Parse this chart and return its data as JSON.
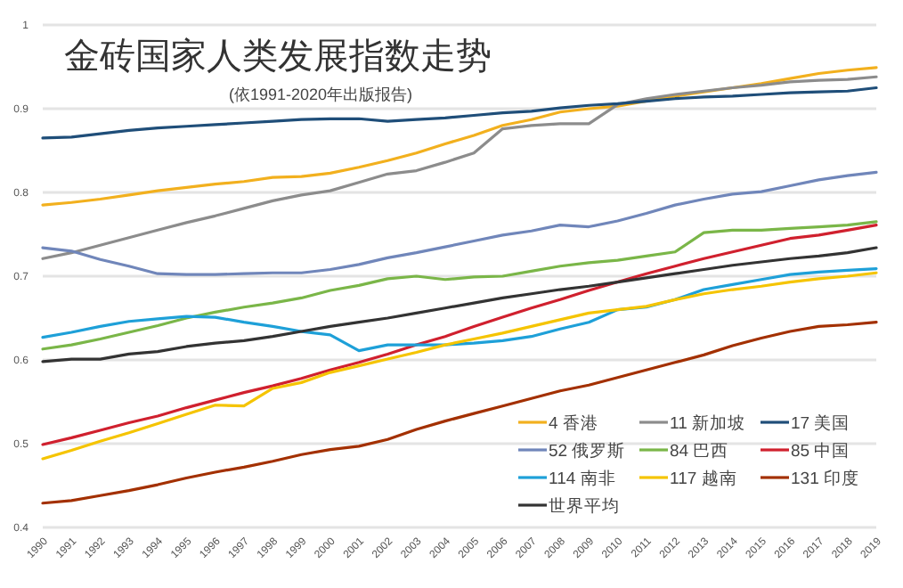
{
  "chart_data": {
    "type": "line",
    "title": "金砖国家人类发展指数走势",
    "subtitle": "(依1991-2020年出版报告)",
    "x": [
      1990,
      1991,
      1992,
      1993,
      1994,
      1995,
      1996,
      1997,
      1998,
      1999,
      2000,
      2001,
      2002,
      2003,
      2004,
      2005,
      2006,
      2007,
      2008,
      2009,
      2010,
      2011,
      2012,
      2013,
      2014,
      2015,
      2016,
      2017,
      2018,
      2019
    ],
    "xlim": [
      1990,
      2019
    ],
    "xticks": [
      1990,
      1991,
      1992,
      1993,
      1994,
      1995,
      1996,
      1997,
      1998,
      1999,
      2000,
      2001,
      2002,
      2003,
      2004,
      2005,
      2006,
      2007,
      2008,
      2009,
      2010,
      2011,
      2012,
      2013,
      2014,
      2015,
      2016,
      2017,
      2018,
      2019
    ],
    "ylim": [
      0.4,
      1
    ],
    "yticks": [
      0.4,
      0.5,
      0.6,
      0.7,
      0.8,
      0.9,
      1
    ],
    "grid": "y",
    "legend": "bottom right",
    "line_style": "solid",
    "marker": "none",
    "series": [
      {
        "name": "4 香港",
        "color": "#f2b01e",
        "values": [
          0.785,
          0.788,
          0.792,
          0.797,
          0.802,
          0.806,
          0.81,
          0.813,
          0.818,
          0.819,
          0.823,
          0.83,
          0.838,
          0.847,
          0.858,
          0.868,
          0.88,
          0.887,
          0.896,
          0.9,
          0.903,
          0.909,
          0.915,
          0.92,
          0.925,
          0.93,
          0.936,
          0.942,
          0.946,
          0.949
        ]
      },
      {
        "name": "11 新加坡",
        "color": "#8c8c8c",
        "values": [
          0.721,
          0.728,
          0.737,
          0.746,
          0.755,
          0.764,
          0.772,
          0.781,
          0.79,
          0.797,
          0.802,
          0.812,
          0.822,
          0.826,
          0.836,
          0.847,
          0.876,
          0.88,
          0.882,
          0.882,
          0.905,
          0.912,
          0.917,
          0.921,
          0.925,
          0.928,
          0.932,
          0.934,
          0.935,
          0.938
        ]
      },
      {
        "name": "17 美国",
        "color": "#1f4e79",
        "values": [
          0.865,
          0.866,
          0.87,
          0.874,
          0.877,
          0.879,
          0.881,
          0.883,
          0.885,
          0.887,
          0.888,
          0.888,
          0.885,
          0.887,
          0.889,
          0.892,
          0.895,
          0.897,
          0.901,
          0.904,
          0.906,
          0.909,
          0.912,
          0.914,
          0.915,
          0.917,
          0.919,
          0.92,
          0.921,
          0.925
        ]
      },
      {
        "name": "52 俄罗斯",
        "color": "#7086ba",
        "values": [
          0.734,
          0.73,
          0.72,
          0.712,
          0.703,
          0.702,
          0.702,
          0.703,
          0.704,
          0.704,
          0.708,
          0.714,
          0.722,
          0.728,
          0.735,
          0.742,
          0.749,
          0.754,
          0.761,
          0.759,
          0.766,
          0.775,
          0.785,
          0.792,
          0.798,
          0.801,
          0.808,
          0.815,
          0.82,
          0.824
        ]
      },
      {
        "name": "84 巴西",
        "color": "#7ab648",
        "values": [
          0.613,
          0.618,
          0.625,
          0.633,
          0.641,
          0.65,
          0.657,
          0.663,
          0.668,
          0.674,
          0.683,
          0.689,
          0.697,
          0.7,
          0.696,
          0.699,
          0.7,
          0.706,
          0.712,
          0.716,
          0.719,
          0.724,
          0.729,
          0.752,
          0.755,
          0.755,
          0.757,
          0.759,
          0.761,
          0.765
        ]
      },
      {
        "name": "85 中国",
        "color": "#d0202e",
        "values": [
          0.499,
          0.507,
          0.516,
          0.525,
          0.533,
          0.543,
          0.552,
          0.561,
          0.569,
          0.578,
          0.588,
          0.597,
          0.607,
          0.618,
          0.628,
          0.64,
          0.651,
          0.662,
          0.672,
          0.683,
          0.693,
          0.703,
          0.712,
          0.721,
          0.729,
          0.737,
          0.745,
          0.749,
          0.755,
          0.761
        ]
      },
      {
        "name": "114 南非",
        "color": "#1ea0d8",
        "values": [
          0.627,
          0.633,
          0.64,
          0.646,
          0.649,
          0.652,
          0.651,
          0.645,
          0.64,
          0.634,
          0.63,
          0.611,
          0.618,
          0.618,
          0.618,
          0.62,
          0.623,
          0.628,
          0.637,
          0.645,
          0.66,
          0.663,
          0.672,
          0.684,
          0.69,
          0.696,
          0.702,
          0.705,
          0.707,
          0.709
        ]
      },
      {
        "name": "117 越南",
        "color": "#f5c400",
        "values": [
          0.482,
          0.492,
          0.503,
          0.513,
          0.524,
          0.535,
          0.546,
          0.545,
          0.566,
          0.573,
          0.585,
          0.593,
          0.601,
          0.609,
          0.618,
          0.625,
          0.632,
          0.64,
          0.648,
          0.656,
          0.66,
          0.664,
          0.672,
          0.679,
          0.684,
          0.688,
          0.693,
          0.697,
          0.7,
          0.704
        ]
      },
      {
        "name": "131 印度",
        "color": "#a33000",
        "values": [
          0.429,
          0.432,
          0.438,
          0.444,
          0.451,
          0.459,
          0.466,
          0.472,
          0.479,
          0.487,
          0.493,
          0.497,
          0.505,
          0.517,
          0.527,
          0.536,
          0.545,
          0.554,
          0.563,
          0.57,
          0.579,
          0.588,
          0.597,
          0.606,
          0.617,
          0.626,
          0.634,
          0.64,
          0.642,
          0.645
        ]
      },
      {
        "name": "世界平均",
        "color": "#333333",
        "values": [
          0.598,
          0.601,
          0.601,
          0.607,
          0.61,
          0.616,
          0.62,
          0.623,
          0.628,
          0.634,
          0.64,
          0.645,
          0.65,
          0.656,
          0.662,
          0.668,
          0.674,
          0.679,
          0.684,
          0.688,
          0.693,
          0.698,
          0.703,
          0.708,
          0.713,
          0.717,
          0.721,
          0.724,
          0.728,
          0.734
        ]
      }
    ]
  }
}
